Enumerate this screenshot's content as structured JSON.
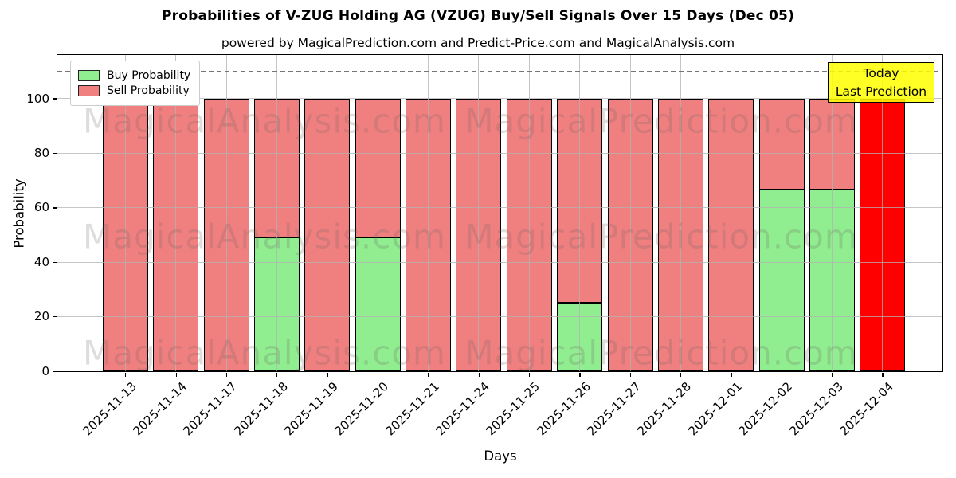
{
  "chart_data": {
    "type": "bar",
    "stacked": true,
    "title": "Probabilities of V-ZUG Holding AG (VZUG) Buy/Sell Signals Over 15 Days (Dec 05)",
    "subtitle": "powered by MagicalPrediction.com and Predict-Price.com and MagicalAnalysis.com",
    "xlabel": "Days",
    "ylabel": "Probability",
    "ylim": [
      0,
      116
    ],
    "yticks": [
      0,
      20,
      40,
      60,
      80,
      100
    ],
    "grid": true,
    "legend_position": "upper left",
    "threshold_dashed_line_y": 110,
    "categories": [
      "2025-11-13",
      "2025-11-14",
      "2025-11-17",
      "2025-11-18",
      "2025-11-19",
      "2025-11-20",
      "2025-11-21",
      "2025-11-24",
      "2025-11-25",
      "2025-11-26",
      "2025-11-27",
      "2025-11-28",
      "2025-12-01",
      "2025-12-02",
      "2025-12-03",
      "2025-12-04"
    ],
    "series": [
      {
        "name": "Buy Probability",
        "color": "#90ee90",
        "values": [
          0,
          0,
          0,
          49,
          0,
          49,
          0,
          0,
          0,
          25,
          0,
          0,
          0,
          66.5,
          66.5,
          0
        ]
      },
      {
        "name": "Sell Probability",
        "color": "#f08080",
        "values": [
          100,
          100,
          100,
          51,
          100,
          51,
          100,
          100,
          100,
          75,
          100,
          100,
          100,
          33.5,
          33.5,
          100
        ]
      }
    ],
    "highlight_bar": {
      "category": "2025-12-04",
      "index": 15,
      "color": "#ff0000"
    },
    "annotation": {
      "lines": [
        "Today",
        "Last Prediction"
      ],
      "bg_color": "#ffff00"
    },
    "watermarks": [
      "MagicalAnalysis.com",
      "MagicalPrediction.com"
    ],
    "colors": {
      "bar_edge": "#000000",
      "grid": "#b3b3b3",
      "dashed_line": "#757575"
    }
  }
}
